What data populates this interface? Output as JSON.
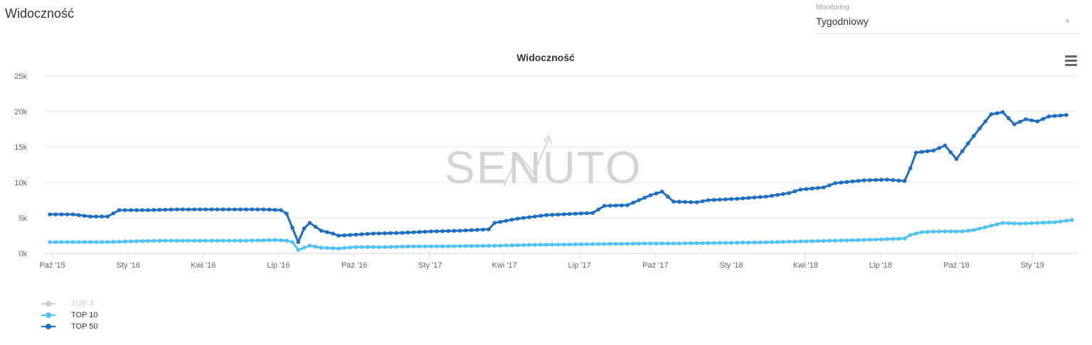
{
  "header": {
    "title": "Widoczność"
  },
  "monitoring": {
    "label": "Monitoring",
    "value": "Tygodniowy"
  },
  "watermark": "SENUTO",
  "chart_data": {
    "type": "line",
    "title": "Widoczność",
    "xlabel": "",
    "ylabel": "",
    "ylim": [
      0,
      25000
    ],
    "yticks": [
      0,
      5000,
      10000,
      15000,
      20000,
      25000
    ],
    "ytick_labels": [
      "0k",
      "5k",
      "10k",
      "15k",
      "20k",
      "25k"
    ],
    "x_start": "2015-09-21",
    "x_end": "2019-02-25",
    "xticks": [
      {
        "date": "2015-10-01",
        "label": "Paź '15"
      },
      {
        "date": "2016-01-01",
        "label": "Sty '16"
      },
      {
        "date": "2016-04-01",
        "label": "Kwi '16"
      },
      {
        "date": "2016-07-01",
        "label": "Lip '16"
      },
      {
        "date": "2016-10-01",
        "label": "Paź '16"
      },
      {
        "date": "2017-01-01",
        "label": "Sty '17"
      },
      {
        "date": "2017-04-01",
        "label": "Kwi '17"
      },
      {
        "date": "2017-07-01",
        "label": "Lip '17"
      },
      {
        "date": "2017-10-01",
        "label": "Paź '17"
      },
      {
        "date": "2018-01-01",
        "label": "Sty '18"
      },
      {
        "date": "2018-04-01",
        "label": "Kwi '18"
      },
      {
        "date": "2018-07-01",
        "label": "Lip '18"
      },
      {
        "date": "2018-10-01",
        "label": "Paź '18"
      },
      {
        "date": "2019-01-01",
        "label": "Sty '19"
      }
    ],
    "grid": true,
    "legend_position": "bottom-left",
    "series": [
      {
        "name": "TOP 3",
        "color": "#cccccc",
        "visible": false,
        "points": []
      },
      {
        "name": "TOP 10",
        "color": "#4fc3f7",
        "visible": true,
        "points": [
          [
            "2015-09-28",
            1600
          ],
          [
            "2015-11-02",
            1600
          ],
          [
            "2015-12-07",
            1600
          ],
          [
            "2016-01-04",
            1700
          ],
          [
            "2016-02-08",
            1800
          ],
          [
            "2016-03-14",
            1800
          ],
          [
            "2016-04-18",
            1800
          ],
          [
            "2016-05-23",
            1800
          ],
          [
            "2016-06-27",
            1900
          ],
          [
            "2016-07-11",
            1800
          ],
          [
            "2016-07-18",
            1600
          ],
          [
            "2016-07-25",
            500
          ],
          [
            "2016-08-01",
            800
          ],
          [
            "2016-08-08",
            1100
          ],
          [
            "2016-08-22",
            800
          ],
          [
            "2016-09-12",
            700
          ],
          [
            "2016-10-03",
            900
          ],
          [
            "2016-11-07",
            900
          ],
          [
            "2016-12-12",
            1000
          ],
          [
            "2017-01-16",
            1000
          ],
          [
            "2017-02-20",
            1050
          ],
          [
            "2017-03-27",
            1100
          ],
          [
            "2017-05-01",
            1200
          ],
          [
            "2017-06-05",
            1250
          ],
          [
            "2017-07-10",
            1300
          ],
          [
            "2017-08-14",
            1350
          ],
          [
            "2017-09-18",
            1400
          ],
          [
            "2017-10-23",
            1400
          ],
          [
            "2017-11-27",
            1450
          ],
          [
            "2018-01-01",
            1500
          ],
          [
            "2018-02-05",
            1550
          ],
          [
            "2018-03-12",
            1650
          ],
          [
            "2018-04-16",
            1750
          ],
          [
            "2018-05-21",
            1850
          ],
          [
            "2018-06-25",
            1950
          ],
          [
            "2018-07-30",
            2100
          ],
          [
            "2018-08-06",
            2600
          ],
          [
            "2018-08-20",
            3000
          ],
          [
            "2018-09-10",
            3100
          ],
          [
            "2018-10-08",
            3100
          ],
          [
            "2018-10-22",
            3300
          ],
          [
            "2018-11-05",
            3700
          ],
          [
            "2018-11-26",
            4300
          ],
          [
            "2018-12-17",
            4200
          ],
          [
            "2019-01-07",
            4300
          ],
          [
            "2019-01-28",
            4400
          ],
          [
            "2019-02-18",
            4700
          ]
        ]
      },
      {
        "name": "TOP 50",
        "color": "#1e6fc1",
        "visible": true,
        "points": [
          [
            "2015-09-28",
            5500
          ],
          [
            "2015-10-26",
            5500
          ],
          [
            "2015-11-16",
            5200
          ],
          [
            "2015-12-07",
            5200
          ],
          [
            "2015-12-21",
            6100
          ],
          [
            "2016-01-25",
            6100
          ],
          [
            "2016-02-29",
            6200
          ],
          [
            "2016-04-04",
            6200
          ],
          [
            "2016-05-09",
            6200
          ],
          [
            "2016-06-13",
            6200
          ],
          [
            "2016-07-04",
            6100
          ],
          [
            "2016-07-11",
            5600
          ],
          [
            "2016-07-18",
            3600
          ],
          [
            "2016-07-25",
            1600
          ],
          [
            "2016-08-01",
            3500
          ],
          [
            "2016-08-08",
            4300
          ],
          [
            "2016-08-22",
            3200
          ],
          [
            "2016-09-05",
            2800
          ],
          [
            "2016-09-12",
            2500
          ],
          [
            "2016-09-26",
            2600
          ],
          [
            "2016-10-24",
            2800
          ],
          [
            "2016-11-28",
            2900
          ],
          [
            "2017-01-02",
            3100
          ],
          [
            "2017-02-06",
            3200
          ],
          [
            "2017-03-13",
            3400
          ],
          [
            "2017-03-20",
            4300
          ],
          [
            "2017-04-17",
            4900
          ],
          [
            "2017-05-22",
            5400
          ],
          [
            "2017-06-26",
            5600
          ],
          [
            "2017-07-17",
            5700
          ],
          [
            "2017-07-31",
            6700
          ],
          [
            "2017-08-28",
            6800
          ],
          [
            "2017-09-11",
            7500
          ],
          [
            "2017-09-25",
            8200
          ],
          [
            "2017-10-09",
            8700
          ],
          [
            "2017-10-23",
            7300
          ],
          [
            "2017-11-20",
            7200
          ],
          [
            "2017-12-04",
            7500
          ],
          [
            "2018-01-08",
            7700
          ],
          [
            "2018-02-12",
            8000
          ],
          [
            "2018-03-12",
            8500
          ],
          [
            "2018-03-26",
            9000
          ],
          [
            "2018-04-23",
            9300
          ],
          [
            "2018-05-07",
            9900
          ],
          [
            "2018-06-11",
            10300
          ],
          [
            "2018-07-09",
            10400
          ],
          [
            "2018-07-30",
            10200
          ],
          [
            "2018-08-06",
            12000
          ],
          [
            "2018-08-13",
            14200
          ],
          [
            "2018-09-03",
            14500
          ],
          [
            "2018-09-17",
            15200
          ],
          [
            "2018-10-01",
            13300
          ],
          [
            "2018-10-15",
            15500
          ],
          [
            "2018-10-29",
            17600
          ],
          [
            "2018-11-12",
            19600
          ],
          [
            "2018-11-26",
            19900
          ],
          [
            "2018-12-10",
            18200
          ],
          [
            "2018-12-24",
            18900
          ],
          [
            "2019-01-07",
            18600
          ],
          [
            "2019-01-21",
            19300
          ],
          [
            "2019-02-11",
            19500
          ]
        ]
      }
    ]
  }
}
